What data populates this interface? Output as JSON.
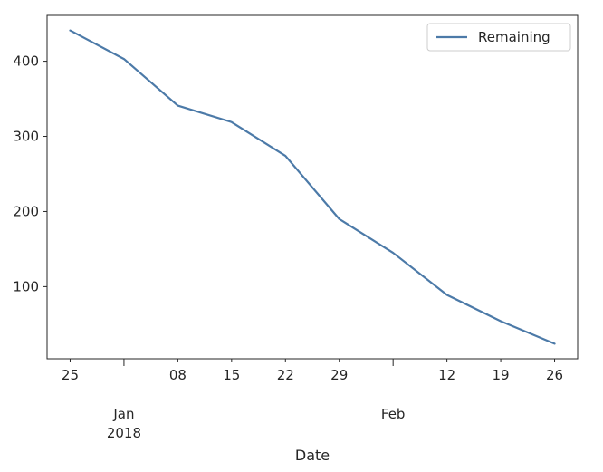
{
  "chart_data": {
    "type": "line",
    "title": "",
    "xlabel": "Date",
    "ylabel": "",
    "x": [
      "2017-12-25",
      "2018-01-01",
      "2018-01-08",
      "2018-01-15",
      "2018-01-22",
      "2018-01-29",
      "2018-02-05",
      "2018-02-12",
      "2018-02-19",
      "2018-02-26"
    ],
    "series": [
      {
        "name": "Remaining",
        "values": [
          441,
          403,
          341,
          319,
          274,
          190,
          145,
          89,
          54,
          24
        ],
        "color": "#4c7aa8"
      }
    ],
    "xlim": [
      "2017-12-22",
      "2018-03-01"
    ],
    "ylim": [
      4,
      461
    ],
    "yticks": [
      100,
      200,
      300,
      400
    ],
    "xticks_minor": [
      {
        "date": "2017-12-25",
        "label": "25"
      },
      {
        "date": "2018-01-08",
        "label": "08"
      },
      {
        "date": "2018-01-15",
        "label": "15"
      },
      {
        "date": "2018-01-22",
        "label": "22"
      },
      {
        "date": "2018-01-29",
        "label": "29"
      },
      {
        "date": "2018-02-12",
        "label": "12"
      },
      {
        "date": "2018-02-19",
        "label": "19"
      },
      {
        "date": "2018-02-26",
        "label": "26"
      }
    ],
    "xticks_major": [
      {
        "date": "2018-01-01",
        "line1": "Jan",
        "line2": "2018"
      },
      {
        "date": "2018-02-05",
        "line1": "Feb",
        "line2": ""
      }
    ],
    "grid": false,
    "legend": "top-right"
  }
}
